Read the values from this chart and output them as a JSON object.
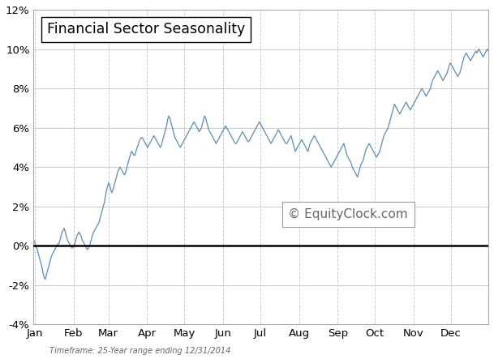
{
  "title": "Financial Sector Seasonality",
  "watermark": "© EquityClock.com",
  "subtitle": "Timeframe: 25-Year range ending 12/31/2014",
  "line_color": "#5B8DB8",
  "background_color": "#FFFFFF",
  "plot_bg_color": "#FFFFFF",
  "grid_color": "#CCCCCC",
  "ylim": [
    -4,
    12
  ],
  "yticks": [
    -4,
    -2,
    0,
    2,
    4,
    6,
    8,
    10,
    12
  ],
  "months": [
    "Jan",
    "Feb",
    "Mar",
    "Apr",
    "May",
    "Jun",
    "Jul",
    "Aug",
    "Sep",
    "Oct",
    "Nov",
    "Dec"
  ],
  "month_starts_day": [
    1,
    32,
    60,
    91,
    121,
    152,
    182,
    213,
    244,
    274,
    305,
    335
  ],
  "total_days": 365,
  "y_values": [
    0.3,
    0.2,
    0.0,
    -0.1,
    -0.3,
    -0.5,
    -0.7,
    -0.9,
    -1.1,
    -1.4,
    -1.6,
    -1.7,
    -1.5,
    -1.3,
    -1.1,
    -0.9,
    -0.7,
    -0.5,
    -0.4,
    -0.3,
    -0.2,
    -0.1,
    0.0,
    0.1,
    0.1,
    0.3,
    0.5,
    0.7,
    0.8,
    0.9,
    0.7,
    0.5,
    0.3,
    0.2,
    0.1,
    0.0,
    -0.1,
    -0.1,
    0.0,
    0.1,
    0.3,
    0.5,
    0.6,
    0.7,
    0.6,
    0.5,
    0.3,
    0.2,
    0.1,
    0.0,
    -0.1,
    -0.2,
    -0.1,
    0.0,
    0.2,
    0.4,
    0.6,
    0.7,
    0.8,
    0.9,
    1.0,
    1.1,
    1.2,
    1.4,
    1.6,
    1.8,
    2.0,
    2.2,
    2.5,
    2.8,
    3.0,
    3.2,
    3.1,
    2.9,
    2.7,
    2.8,
    3.0,
    3.2,
    3.4,
    3.6,
    3.8,
    3.9,
    4.0,
    3.9,
    3.8,
    3.7,
    3.6,
    3.7,
    3.9,
    4.1,
    4.3,
    4.5,
    4.7,
    4.8,
    4.7,
    4.6,
    4.6,
    4.8,
    5.0,
    5.1,
    5.3,
    5.4,
    5.5,
    5.5,
    5.4,
    5.3,
    5.2,
    5.1,
    5.0,
    5.1,
    5.2,
    5.3,
    5.4,
    5.5,
    5.6,
    5.5,
    5.4,
    5.3,
    5.2,
    5.1,
    5.0,
    5.1,
    5.3,
    5.5,
    5.7,
    5.9,
    6.1,
    6.4,
    6.6,
    6.5,
    6.3,
    6.1,
    5.9,
    5.7,
    5.5,
    5.4,
    5.3,
    5.2,
    5.1,
    5.0,
    5.1,
    5.2,
    5.3,
    5.4,
    5.5,
    5.6,
    5.7,
    5.8,
    5.9,
    6.0,
    6.1,
    6.2,
    6.3,
    6.2,
    6.1,
    6.0,
    5.9,
    5.8,
    5.9,
    6.0,
    6.2,
    6.4,
    6.6,
    6.5,
    6.3,
    6.1,
    5.9,
    5.8,
    5.7,
    5.6,
    5.5,
    5.4,
    5.3,
    5.2,
    5.3,
    5.4,
    5.5,
    5.6,
    5.7,
    5.8,
    5.9,
    6.0,
    6.1,
    6.0,
    5.9,
    5.8,
    5.7,
    5.6,
    5.5,
    5.4,
    5.3,
    5.2,
    5.2,
    5.3,
    5.4,
    5.5,
    5.6,
    5.7,
    5.8,
    5.7,
    5.6,
    5.5,
    5.4,
    5.3,
    5.3,
    5.4,
    5.5,
    5.6,
    5.7,
    5.8,
    5.9,
    6.0,
    6.1,
    6.2,
    6.3,
    6.2,
    6.1,
    6.0,
    5.9,
    5.8,
    5.7,
    5.6,
    5.5,
    5.4,
    5.3,
    5.2,
    5.3,
    5.4,
    5.5,
    5.6,
    5.7,
    5.8,
    5.9,
    5.8,
    5.7,
    5.6,
    5.5,
    5.4,
    5.3,
    5.2,
    5.2,
    5.3,
    5.4,
    5.5,
    5.6,
    5.4,
    5.2,
    5.0,
    4.8,
    4.9,
    5.0,
    5.1,
    5.2,
    5.3,
    5.4,
    5.3,
    5.2,
    5.1,
    5.0,
    4.9,
    4.8,
    5.0,
    5.2,
    5.3,
    5.4,
    5.5,
    5.6,
    5.5,
    5.4,
    5.3,
    5.2,
    5.1,
    5.0,
    4.9,
    4.8,
    4.7,
    4.6,
    4.5,
    4.4,
    4.3,
    4.2,
    4.1,
    4.0,
    4.1,
    4.2,
    4.3,
    4.4,
    4.5,
    4.6,
    4.7,
    4.8,
    4.9,
    5.0,
    5.1,
    5.2,
    5.0,
    4.8,
    4.6,
    4.5,
    4.4,
    4.3,
    4.2,
    4.0,
    3.9,
    3.8,
    3.7,
    3.6,
    3.5,
    3.7,
    3.9,
    4.1,
    4.2,
    4.3,
    4.5,
    4.7,
    4.9,
    5.0,
    5.1,
    5.2,
    5.1,
    5.0,
    4.9,
    4.8,
    4.7,
    4.6,
    4.5,
    4.6,
    4.7,
    4.8,
    5.0,
    5.2,
    5.4,
    5.6,
    5.7,
    5.8,
    5.9,
    6.0,
    6.2,
    6.4,
    6.6,
    6.8,
    7.0,
    7.2,
    7.1,
    7.0,
    6.9,
    6.8,
    6.7,
    6.8,
    6.9,
    7.0,
    7.1,
    7.2,
    7.3,
    7.2,
    7.1,
    7.0,
    6.9,
    7.0,
    7.1,
    7.2,
    7.3,
    7.4,
    7.5,
    7.6,
    7.7,
    7.8,
    7.9,
    8.0,
    7.9,
    7.8,
    7.7,
    7.6,
    7.7,
    7.8,
    7.9,
    8.0,
    8.2,
    8.4,
    8.5,
    8.6,
    8.7,
    8.8,
    8.9,
    8.8,
    8.7,
    8.6,
    8.5,
    8.4,
    8.5,
    8.6,
    8.7,
    8.8,
    9.0,
    9.2,
    9.3,
    9.2,
    9.1,
    9.0,
    8.9,
    8.8,
    8.7,
    8.6,
    8.7,
    8.8,
    9.0,
    9.2,
    9.4,
    9.6,
    9.7,
    9.8,
    9.7,
    9.6,
    9.5,
    9.4,
    9.5,
    9.6,
    9.7,
    9.8,
    9.9,
    9.8,
    9.9,
    10.0,
    9.9,
    9.8,
    9.7,
    9.6,
    9.7,
    9.8,
    9.9,
    10.0,
    9.9
  ]
}
